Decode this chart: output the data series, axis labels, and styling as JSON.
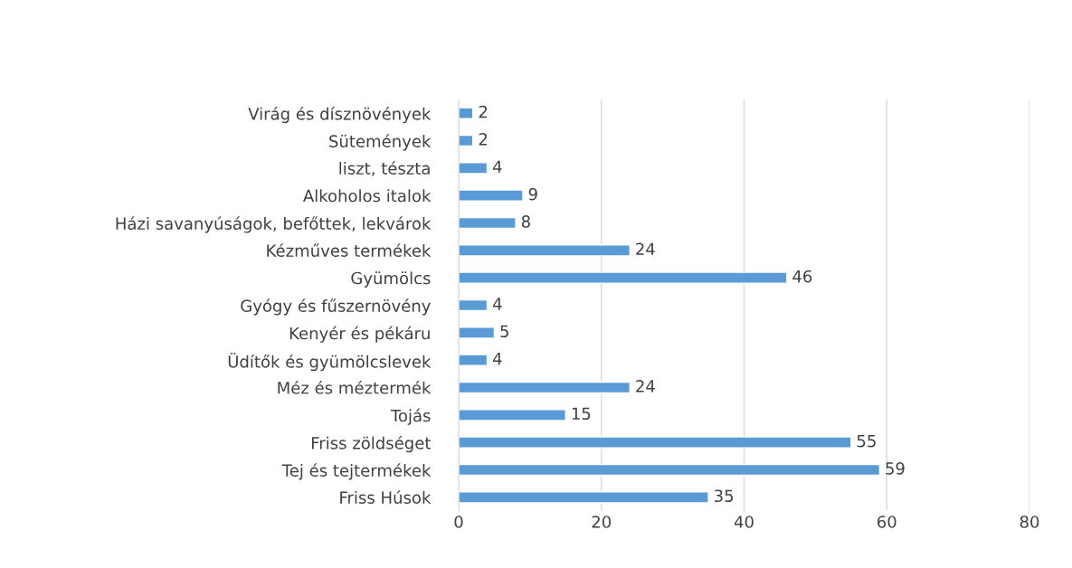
{
  "chart_data": {
    "type": "bar",
    "orientation": "horizontal",
    "categories": [
      "Virág és dísznövények",
      "Sütemények",
      "liszt, tészta",
      "Alkoholos italok",
      "Házi savanyúságok, befőttek, lekvárok",
      "Kézműves termékek",
      "Gyümölcs",
      "Gyógy és fűszernövény",
      "Kenyér és pékáru",
      "Üdítők és gyümölcslevek",
      "Méz és méztermék",
      "Tojás",
      "Friss zöldséget",
      "Tej és tejtermékek",
      "Friss Húsok"
    ],
    "values": [
      2,
      2,
      4,
      9,
      8,
      24,
      46,
      4,
      5,
      4,
      24,
      15,
      55,
      59,
      35
    ],
    "color": "#5b9bd5",
    "xlim": [
      0,
      80
    ],
    "xticks": [
      0,
      20,
      40,
      60,
      80
    ],
    "grid": "x",
    "data_labels": true
  }
}
